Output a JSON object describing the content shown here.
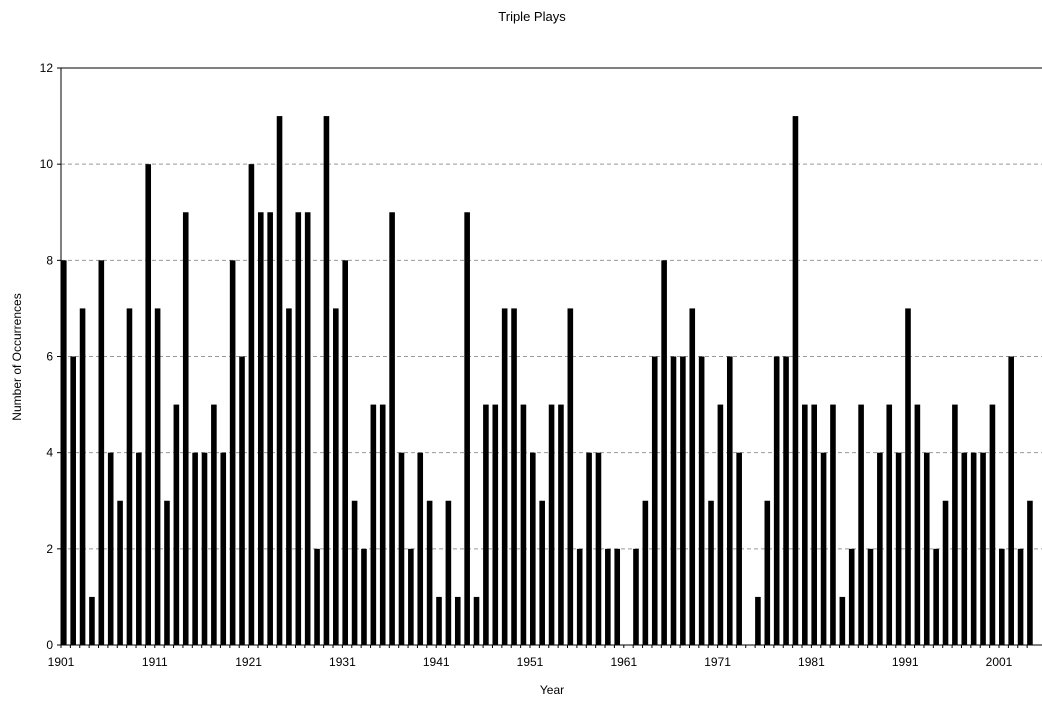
{
  "chart_data": {
    "type": "bar",
    "title": "Triple Plays",
    "xlabel": "Year",
    "ylabel": "Number of Occurrences",
    "ylim": [
      0,
      12
    ],
    "yticks": [
      0,
      2,
      4,
      6,
      8,
      10,
      12
    ],
    "xtick_labels": [
      "1901",
      "1911",
      "1921",
      "1931",
      "1941",
      "1951",
      "1961",
      "1971",
      "1981",
      "1991",
      "2001"
    ],
    "grid": "horizontal dashed",
    "bar_color": "#000000",
    "grid_color": "#999999",
    "x": [
      1901,
      1902,
      1903,
      1904,
      1905,
      1906,
      1907,
      1908,
      1909,
      1910,
      1911,
      1912,
      1913,
      1914,
      1915,
      1916,
      1917,
      1918,
      1919,
      1920,
      1921,
      1922,
      1923,
      1924,
      1925,
      1926,
      1927,
      1928,
      1929,
      1930,
      1931,
      1932,
      1933,
      1934,
      1935,
      1936,
      1937,
      1938,
      1939,
      1940,
      1941,
      1942,
      1943,
      1944,
      1945,
      1946,
      1947,
      1948,
      1949,
      1950,
      1951,
      1952,
      1953,
      1954,
      1955,
      1956,
      1957,
      1958,
      1959,
      1960,
      1961,
      1962,
      1963,
      1964,
      1965,
      1966,
      1967,
      1968,
      1969,
      1970,
      1971,
      1972,
      1973,
      1974,
      1975,
      1976,
      1977,
      1978,
      1979,
      1980,
      1981,
      1982,
      1983,
      1984,
      1985,
      1986,
      1987,
      1988,
      1989,
      1990,
      1991,
      1992,
      1993,
      1994,
      1995,
      1996,
      1997,
      1998,
      1999,
      2000,
      2001,
      2002,
      2003,
      2004
    ],
    "values": [
      8,
      6,
      7,
      1,
      8,
      4,
      3,
      7,
      4,
      10,
      7,
      3,
      5,
      9,
      4,
      4,
      5,
      4,
      8,
      6,
      10,
      9,
      9,
      11,
      7,
      9,
      9,
      2,
      11,
      7,
      8,
      3,
      2,
      5,
      5,
      9,
      4,
      2,
      4,
      3,
      1,
      3,
      1,
      9,
      1,
      5,
      5,
      7,
      7,
      5,
      4,
      3,
      5,
      5,
      7,
      2,
      4,
      4,
      2,
      2,
      0,
      2,
      3,
      6,
      8,
      6,
      6,
      7,
      6,
      3,
      5,
      6,
      4,
      0,
      1,
      3,
      6,
      6,
      11,
      5,
      5,
      4,
      5,
      1,
      2,
      5,
      2,
      4,
      5,
      4,
      7,
      5,
      4,
      2,
      3,
      5,
      4,
      4,
      4,
      5,
      2,
      6,
      2,
      3
    ]
  }
}
